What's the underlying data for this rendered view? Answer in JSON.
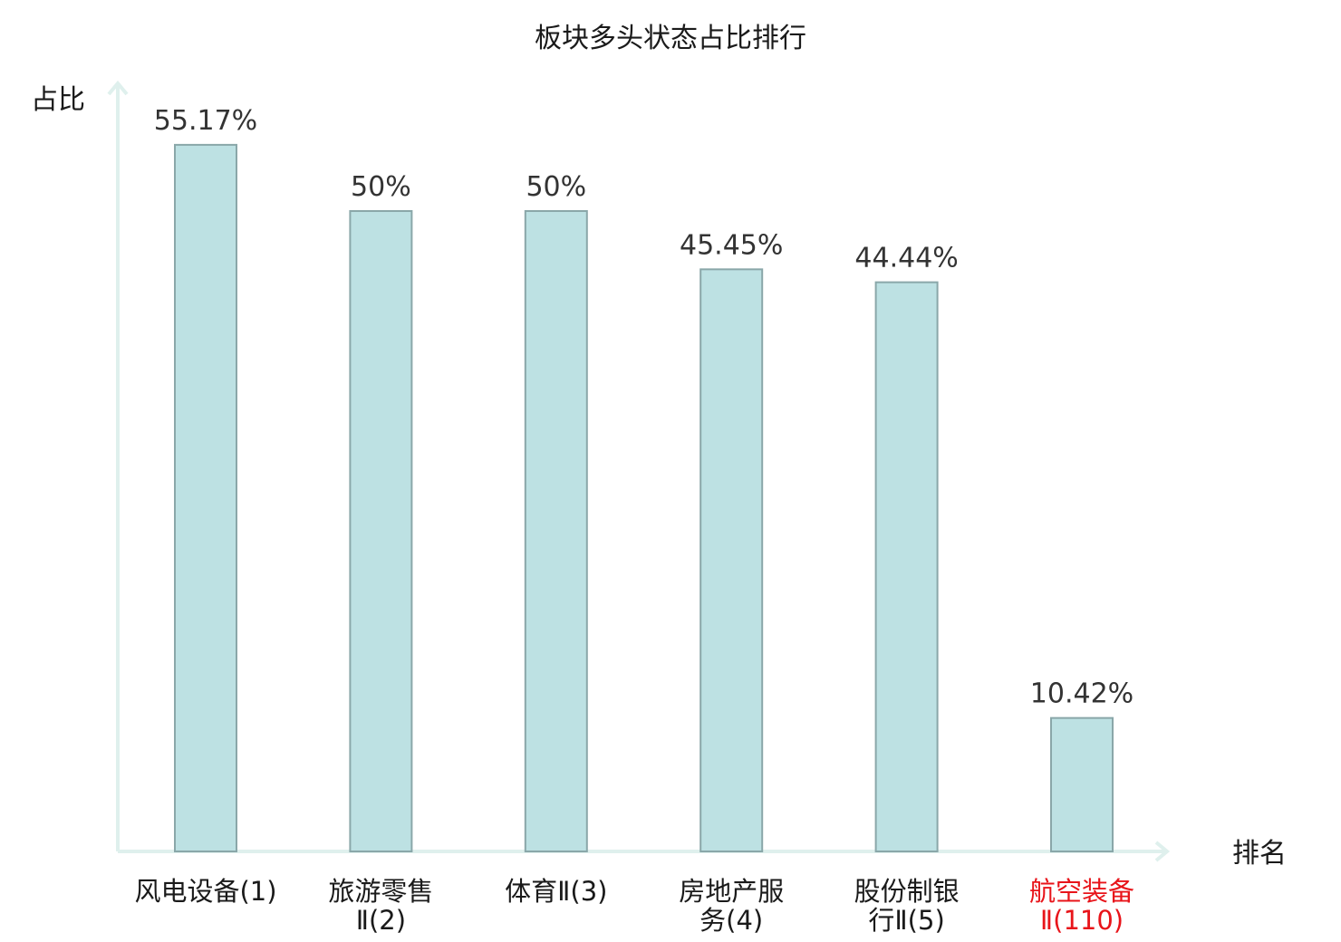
{
  "chart_data": {
    "type": "bar",
    "title": "板块多头状态占比排行",
    "ylabel": "占比",
    "xlabel": "排名",
    "categories": [
      [
        "风电设备(1)"
      ],
      [
        "旅游零售",
        "Ⅱ(2)"
      ],
      [
        "体育Ⅱ(3)"
      ],
      [
        "房地产服",
        "务(4)"
      ],
      [
        "股份制银",
        "行Ⅱ(5)"
      ],
      [
        "航空装备",
        "Ⅱ(110)"
      ]
    ],
    "values": [
      55.17,
      50,
      50,
      45.45,
      44.44,
      10.42
    ],
    "value_labels": [
      "55.17%",
      "50%",
      "50%",
      "45.45%",
      "44.44%",
      "10.42%"
    ],
    "highlight_index": 5,
    "ylim": [
      0,
      100
    ],
    "grid": false,
    "legend": "none"
  },
  "colors": {
    "bar_fill": "#bde1e3",
    "bar_stroke": "#8aa7a9",
    "axis": "#dff0ed",
    "label": "#1a1a1a",
    "highlight": "#e8141a"
  }
}
